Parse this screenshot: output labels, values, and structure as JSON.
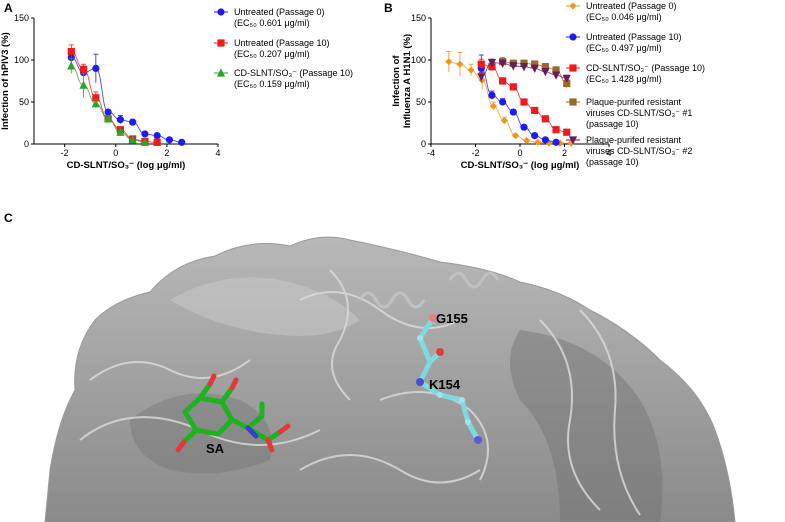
{
  "panels": {
    "a": "A",
    "b": "B",
    "c": "C"
  },
  "chart_data": [
    {
      "type": "scatter",
      "panel": "A",
      "title": "",
      "xlabel": "CD-SLNT/SO₃⁻ (log μg/ml)",
      "ylabel": "Infection of hPIV3 (%)",
      "xlim": [
        -3.2,
        4
      ],
      "ylim": [
        0,
        150
      ],
      "xticks": [
        -2,
        0,
        2,
        4
      ],
      "yticks": [
        0,
        50,
        100,
        150
      ],
      "legend_position": "right",
      "series": [
        {
          "name": "Untreated (Passage 0)",
          "ec50": "(EC₅₀ 0.601 μg/ml)",
          "color": "#1c1cf0",
          "marker": "circle",
          "x": [
            -1.74,
            -1.26,
            -0.78,
            -0.3,
            0.18,
            0.66,
            1.14,
            1.62,
            2.1,
            2.58
          ],
          "y": [
            103,
            85,
            90,
            38,
            29,
            26,
            12,
            10,
            5,
            2
          ],
          "err": [
            10,
            0,
            17,
            0,
            5,
            3,
            2,
            2,
            1,
            0
          ]
        },
        {
          "name": "Untreated (Passage 10)",
          "ec50": "(EC₅₀ 0.207 μg/ml)",
          "color": "#ee1b1b",
          "marker": "square",
          "x": [
            -1.74,
            -1.26,
            -0.78,
            -0.3,
            0.18,
            0.66,
            1.14,
            1.62
          ],
          "y": [
            110,
            89,
            55,
            30,
            17,
            6,
            3,
            2
          ],
          "err": [
            8,
            6,
            7,
            3,
            2,
            1,
            0,
            0
          ]
        },
        {
          "name": "CD-SLNT/SO₃⁻ (Passage 10)",
          "ec50": "(EC₅₀ 0.159 μg/ml)",
          "color": "#2aa52a",
          "marker": "triangle",
          "x": [
            -1.74,
            -1.26,
            -0.78,
            -0.3,
            0.18,
            0.66,
            1.14
          ],
          "y": [
            93,
            70,
            48,
            30,
            14,
            5,
            2
          ],
          "err": [
            9,
            14,
            5,
            3,
            2,
            1,
            0
          ]
        }
      ]
    },
    {
      "type": "scatter",
      "panel": "B",
      "title": "",
      "xlabel": "CD-SLNT/SO₃⁻ (log μg/ml)",
      "ylabel": "Infection of Influenza A H1N1 (%)",
      "xlim": [
        -4,
        4
      ],
      "ylim": [
        0,
        150
      ],
      "xticks": [
        -4,
        -2,
        0,
        2,
        4
      ],
      "yticks": [
        0,
        50,
        100,
        150
      ],
      "legend_position": "right",
      "series": [
        {
          "name": "Untreated (Passage 0)",
          "ec50": "(EC₅₀ 0.046 μg/ml)",
          "color": "#f0961c",
          "marker": "diamond",
          "x": [
            -3.2,
            -2.7,
            -2.2,
            -1.7,
            -1.2,
            -0.7,
            -0.2,
            0.3,
            0.8,
            1.3,
            1.8,
            2.3
          ],
          "y": [
            98,
            95,
            88,
            76,
            45,
            28,
            10,
            4,
            2,
            1,
            1,
            1
          ],
          "err": [
            12,
            14,
            7,
            11,
            5,
            4,
            2,
            1,
            0,
            0,
            0,
            0
          ]
        },
        {
          "name": "Untreated (Passage 10)",
          "ec50": "(EC₅₀ 0.497 μg/ml)",
          "color": "#1c1cf0",
          "marker": "circle",
          "x": [
            -1.74,
            -1.26,
            -0.78,
            -0.3,
            0.18,
            0.66,
            1.14,
            1.62
          ],
          "y": [
            90,
            58,
            50,
            38,
            20,
            10,
            5,
            2
          ],
          "err": [
            16,
            5,
            4,
            3,
            2,
            1,
            0,
            0
          ]
        },
        {
          "name": "CD-SLNT/SO₃⁻ (Passage 10)",
          "ec50": "(EC₅₀ 1.428 μg/ml)",
          "color": "#ee1b1b",
          "marker": "square",
          "x": [
            -1.74,
            -1.26,
            -0.78,
            -0.3,
            0.18,
            0.66,
            1.14,
            1.62,
            2.1
          ],
          "y": [
            95,
            92,
            75,
            68,
            50,
            40,
            30,
            17,
            14
          ],
          "err": [
            6,
            5,
            4,
            3,
            3,
            2,
            2,
            2,
            1
          ]
        },
        {
          "name": "Plaque-purifed resistant viruses CD-SLNT/SO₃⁻ #1",
          "extra": "(passage 10)",
          "color": "#9a6a2a",
          "marker": "square",
          "x": [
            -0.78,
            -0.3,
            0.18,
            0.66,
            1.14,
            1.62,
            2.1
          ],
          "y": [
            98,
            96,
            96,
            95,
            92,
            88,
            72
          ],
          "err": [
            5,
            4,
            4,
            4,
            4,
            4,
            5
          ]
        },
        {
          "name": "Plaque-purifed resistant viruses CD-SLNT/SO₃⁻ #2",
          "extra": "(passage 10)",
          "color": "#6a1a5e",
          "marker": "triangle-down",
          "x": [
            -1.74,
            -1.26,
            -0.78,
            -0.3,
            0.18,
            0.66,
            1.14,
            1.62,
            2.1
          ],
          "y": [
            80,
            97,
            96,
            93,
            92,
            90,
            86,
            82,
            78
          ],
          "err": [
            5,
            4,
            4,
            4,
            4,
            4,
            4,
            4,
            4
          ]
        }
      ]
    }
  ],
  "structure": {
    "labels": {
      "g155": "G155",
      "k154": "K154",
      "sa": "SA"
    },
    "colors": {
      "surface": "#8e8e8e",
      "ligand": "#1fb21f",
      "residue": "#7fd9e0",
      "oxygen": "#e23a3a",
      "nitrogen": "#4a4ad8"
    }
  }
}
